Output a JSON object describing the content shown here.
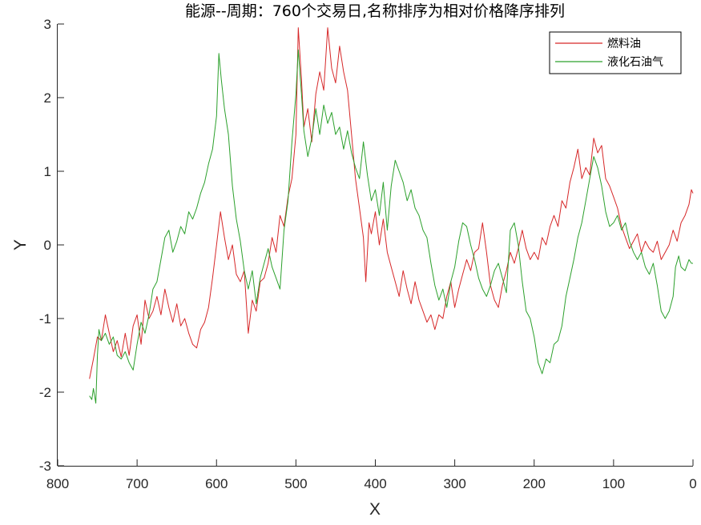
{
  "chart_data": {
    "type": "line",
    "title": "能源--周期：760个交易日,名称排序为相对价格降序排列",
    "xlabel": "X",
    "ylabel": "Y",
    "xlim": [
      800,
      0
    ],
    "ylim": [
      -3,
      3
    ],
    "x_reversed": true,
    "xticks": [
      800,
      700,
      600,
      500,
      400,
      300,
      200,
      100,
      0
    ],
    "yticks": [
      3,
      2,
      1,
      0,
      -1,
      -2,
      -3
    ],
    "grid": false,
    "legend_position": "top-right",
    "series": [
      {
        "name": "燃料油",
        "color": "#d62728",
        "points": [
          [
            760,
            -1.82
          ],
          [
            755,
            -1.55
          ],
          [
            750,
            -1.25
          ],
          [
            745,
            -1.3
          ],
          [
            740,
            -0.95
          ],
          [
            735,
            -1.2
          ],
          [
            730,
            -1.45
          ],
          [
            725,
            -1.3
          ],
          [
            720,
            -1.52
          ],
          [
            715,
            -1.2
          ],
          [
            710,
            -1.5
          ],
          [
            705,
            -1.1
          ],
          [
            700,
            -0.95
          ],
          [
            695,
            -1.35
          ],
          [
            690,
            -0.75
          ],
          [
            685,
            -1.0
          ],
          [
            680,
            -0.9
          ],
          [
            675,
            -0.7
          ],
          [
            670,
            -0.95
          ],
          [
            665,
            -0.6
          ],
          [
            660,
            -0.85
          ],
          [
            655,
            -1.05
          ],
          [
            650,
            -0.8
          ],
          [
            645,
            -1.1
          ],
          [
            640,
            -1.0
          ],
          [
            635,
            -1.2
          ],
          [
            630,
            -1.35
          ],
          [
            625,
            -1.4
          ],
          [
            620,
            -1.15
          ],
          [
            615,
            -1.05
          ],
          [
            610,
            -0.85
          ],
          [
            605,
            -0.45
          ],
          [
            600,
            0.0
          ],
          [
            595,
            0.45
          ],
          [
            590,
            0.1
          ],
          [
            585,
            -0.2
          ],
          [
            580,
            0.0
          ],
          [
            575,
            -0.4
          ],
          [
            570,
            -0.5
          ],
          [
            565,
            -0.35
          ],
          [
            560,
            -1.2
          ],
          [
            555,
            -0.75
          ],
          [
            550,
            -0.9
          ],
          [
            545,
            -0.5
          ],
          [
            540,
            -0.45
          ],
          [
            535,
            -0.25
          ],
          [
            530,
            0.1
          ],
          [
            525,
            -0.1
          ],
          [
            520,
            0.4
          ],
          [
            515,
            0.25
          ],
          [
            510,
            0.65
          ],
          [
            505,
            0.9
          ],
          [
            500,
            1.5
          ],
          [
            497,
            2.95
          ],
          [
            493,
            2.25
          ],
          [
            490,
            1.6
          ],
          [
            485,
            1.85
          ],
          [
            480,
            1.4
          ],
          [
            475,
            2.05
          ],
          [
            470,
            2.35
          ],
          [
            465,
            2.1
          ],
          [
            460,
            2.95
          ],
          [
            455,
            2.4
          ],
          [
            450,
            2.2
          ],
          [
            445,
            2.7
          ],
          [
            440,
            2.35
          ],
          [
            435,
            2.1
          ],
          [
            430,
            1.5
          ],
          [
            425,
            0.9
          ],
          [
            420,
            0.5
          ],
          [
            415,
            0.1
          ],
          [
            412,
            -0.5
          ],
          [
            408,
            0.3
          ],
          [
            405,
            0.15
          ],
          [
            400,
            0.45
          ],
          [
            395,
            0.0
          ],
          [
            390,
            0.35
          ],
          [
            385,
            -0.1
          ],
          [
            380,
            -0.3
          ],
          [
            375,
            -0.5
          ],
          [
            370,
            -0.7
          ],
          [
            365,
            -0.35
          ],
          [
            360,
            -0.6
          ],
          [
            355,
            -0.8
          ],
          [
            350,
            -0.5
          ],
          [
            345,
            -0.75
          ],
          [
            340,
            -0.9
          ],
          [
            335,
            -1.05
          ],
          [
            330,
            -0.95
          ],
          [
            325,
            -1.15
          ],
          [
            320,
            -0.95
          ],
          [
            315,
            -1.0
          ],
          [
            310,
            -0.7
          ],
          [
            305,
            -0.5
          ],
          [
            300,
            -0.85
          ],
          [
            295,
            -0.6
          ],
          [
            290,
            -0.4
          ],
          [
            285,
            -0.2
          ],
          [
            280,
            -0.35
          ],
          [
            275,
            -0.1
          ],
          [
            270,
            -0.05
          ],
          [
            265,
            0.3
          ],
          [
            260,
            -0.1
          ],
          [
            255,
            -0.55
          ],
          [
            250,
            -0.75
          ],
          [
            245,
            -0.85
          ],
          [
            240,
            -0.55
          ],
          [
            235,
            -0.35
          ],
          [
            230,
            -0.1
          ],
          [
            225,
            -0.25
          ],
          [
            220,
            -0.05
          ],
          [
            215,
            0.2
          ],
          [
            210,
            -0.05
          ],
          [
            205,
            -0.2
          ],
          [
            200,
            -0.1
          ],
          [
            195,
            -0.2
          ],
          [
            190,
            0.1
          ],
          [
            185,
            0.0
          ],
          [
            180,
            0.25
          ],
          [
            175,
            0.4
          ],
          [
            170,
            0.25
          ],
          [
            165,
            0.6
          ],
          [
            160,
            0.5
          ],
          [
            155,
            0.85
          ],
          [
            150,
            1.05
          ],
          [
            145,
            1.3
          ],
          [
            140,
            0.9
          ],
          [
            135,
            1.05
          ],
          [
            130,
            0.95
          ],
          [
            125,
            1.45
          ],
          [
            120,
            1.25
          ],
          [
            115,
            1.35
          ],
          [
            110,
            0.9
          ],
          [
            105,
            0.8
          ],
          [
            100,
            0.65
          ],
          [
            95,
            0.5
          ],
          [
            90,
            0.25
          ],
          [
            85,
            0.1
          ],
          [
            80,
            -0.05
          ],
          [
            75,
            0.05
          ],
          [
            70,
            0.15
          ],
          [
            65,
            -0.1
          ],
          [
            60,
            0.05
          ],
          [
            55,
            -0.05
          ],
          [
            50,
            -0.1
          ],
          [
            45,
            0.05
          ],
          [
            40,
            -0.2
          ],
          [
            35,
            -0.1
          ],
          [
            30,
            0.0
          ],
          [
            25,
            0.2
          ],
          [
            20,
            0.05
          ],
          [
            15,
            0.3
          ],
          [
            10,
            0.4
          ],
          [
            5,
            0.55
          ],
          [
            2,
            0.75
          ],
          [
            0,
            0.7
          ]
        ]
      },
      {
        "name": "液化石油气",
        "color": "#2ca02c",
        "points": [
          [
            760,
            -2.05
          ],
          [
            757,
            -2.1
          ],
          [
            755,
            -1.95
          ],
          [
            752,
            -2.15
          ],
          [
            750,
            -1.5
          ],
          [
            748,
            -1.15
          ],
          [
            745,
            -1.3
          ],
          [
            740,
            -1.2
          ],
          [
            735,
            -1.35
          ],
          [
            730,
            -1.25
          ],
          [
            725,
            -1.5
          ],
          [
            720,
            -1.55
          ],
          [
            715,
            -1.45
          ],
          [
            710,
            -1.6
          ],
          [
            705,
            -1.7
          ],
          [
            700,
            -1.35
          ],
          [
            695,
            -1.05
          ],
          [
            690,
            -1.2
          ],
          [
            685,
            -0.95
          ],
          [
            680,
            -0.6
          ],
          [
            675,
            -0.5
          ],
          [
            670,
            -0.2
          ],
          [
            665,
            0.1
          ],
          [
            660,
            0.2
          ],
          [
            655,
            -0.1
          ],
          [
            650,
            0.05
          ],
          [
            645,
            0.25
          ],
          [
            640,
            0.15
          ],
          [
            635,
            0.45
          ],
          [
            630,
            0.35
          ],
          [
            625,
            0.5
          ],
          [
            620,
            0.7
          ],
          [
            615,
            0.85
          ],
          [
            610,
            1.1
          ],
          [
            605,
            1.3
          ],
          [
            600,
            1.75
          ],
          [
            597,
            2.6
          ],
          [
            594,
            2.25
          ],
          [
            590,
            1.85
          ],
          [
            585,
            1.5
          ],
          [
            580,
            0.8
          ],
          [
            575,
            0.35
          ],
          [
            570,
            0.05
          ],
          [
            565,
            -0.35
          ],
          [
            560,
            -0.6
          ],
          [
            555,
            -0.35
          ],
          [
            550,
            -0.8
          ],
          [
            545,
            -0.45
          ],
          [
            540,
            -0.25
          ],
          [
            535,
            -0.05
          ],
          [
            530,
            -0.3
          ],
          [
            525,
            -0.45
          ],
          [
            520,
            -0.6
          ],
          [
            515,
            0.2
          ],
          [
            510,
            0.6
          ],
          [
            505,
            1.4
          ],
          [
            500,
            2.05
          ],
          [
            497,
            2.65
          ],
          [
            493,
            2.05
          ],
          [
            490,
            1.55
          ],
          [
            485,
            1.2
          ],
          [
            480,
            1.45
          ],
          [
            475,
            1.85
          ],
          [
            470,
            1.5
          ],
          [
            465,
            1.9
          ],
          [
            460,
            1.65
          ],
          [
            455,
            1.8
          ],
          [
            450,
            1.5
          ],
          [
            445,
            1.6
          ],
          [
            440,
            1.3
          ],
          [
            435,
            1.55
          ],
          [
            430,
            1.25
          ],
          [
            425,
            1.05
          ],
          [
            420,
            0.9
          ],
          [
            415,
            1.4
          ],
          [
            410,
            0.95
          ],
          [
            405,
            0.6
          ],
          [
            400,
            0.75
          ],
          [
            395,
            0.4
          ],
          [
            390,
            0.85
          ],
          [
            385,
            0.2
          ],
          [
            380,
            0.8
          ],
          [
            375,
            1.15
          ],
          [
            370,
            1.0
          ],
          [
            365,
            0.85
          ],
          [
            360,
            0.6
          ],
          [
            355,
            0.75
          ],
          [
            350,
            0.5
          ],
          [
            345,
            0.4
          ],
          [
            340,
            0.2
          ],
          [
            335,
            0.1
          ],
          [
            330,
            -0.25
          ],
          [
            325,
            -0.55
          ],
          [
            320,
            -0.75
          ],
          [
            315,
            -0.6
          ],
          [
            310,
            -0.85
          ],
          [
            305,
            -0.5
          ],
          [
            300,
            -0.3
          ],
          [
            295,
            0.05
          ],
          [
            290,
            0.3
          ],
          [
            285,
            0.25
          ],
          [
            280,
            0.0
          ],
          [
            275,
            -0.2
          ],
          [
            270,
            -0.45
          ],
          [
            265,
            -0.6
          ],
          [
            260,
            -0.7
          ],
          [
            255,
            -0.55
          ],
          [
            250,
            -0.35
          ],
          [
            245,
            -0.25
          ],
          [
            240,
            -0.45
          ],
          [
            235,
            -0.65
          ],
          [
            230,
            0.2
          ],
          [
            225,
            0.3
          ],
          [
            220,
            0.0
          ],
          [
            215,
            -0.5
          ],
          [
            210,
            -0.9
          ],
          [
            205,
            -1.0
          ],
          [
            200,
            -1.25
          ],
          [
            195,
            -1.6
          ],
          [
            190,
            -1.75
          ],
          [
            185,
            -1.55
          ],
          [
            180,
            -1.6
          ],
          [
            175,
            -1.35
          ],
          [
            170,
            -1.3
          ],
          [
            165,
            -1.1
          ],
          [
            160,
            -0.7
          ],
          [
            155,
            -0.45
          ],
          [
            150,
            -0.2
          ],
          [
            145,
            0.1
          ],
          [
            140,
            0.3
          ],
          [
            135,
            0.6
          ],
          [
            130,
            0.9
          ],
          [
            125,
            1.2
          ],
          [
            120,
            1.05
          ],
          [
            115,
            0.8
          ],
          [
            110,
            0.45
          ],
          [
            105,
            0.25
          ],
          [
            100,
            0.3
          ],
          [
            95,
            0.4
          ],
          [
            90,
            0.2
          ],
          [
            85,
            0.3
          ],
          [
            80,
            0.05
          ],
          [
            75,
            -0.1
          ],
          [
            70,
            -0.2
          ],
          [
            65,
            -0.1
          ],
          [
            60,
            -0.3
          ],
          [
            55,
            -0.4
          ],
          [
            50,
            -0.25
          ],
          [
            45,
            -0.55
          ],
          [
            40,
            -0.9
          ],
          [
            35,
            -1.0
          ],
          [
            30,
            -0.9
          ],
          [
            25,
            -0.7
          ],
          [
            22,
            -0.3
          ],
          [
            18,
            -0.15
          ],
          [
            15,
            -0.3
          ],
          [
            10,
            -0.35
          ],
          [
            5,
            -0.2
          ],
          [
            2,
            -0.25
          ],
          [
            0,
            -0.25
          ]
        ]
      }
    ]
  }
}
